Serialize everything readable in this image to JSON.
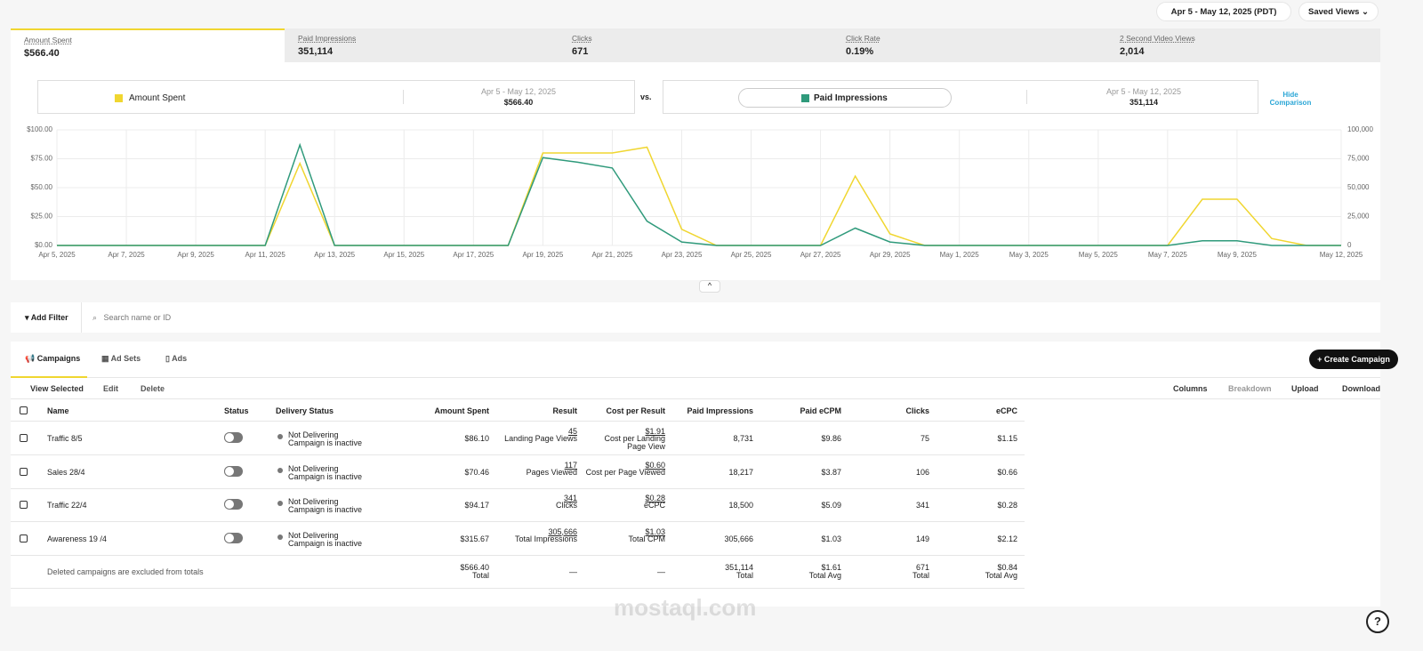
{
  "header": {
    "date_range": "Apr 5 - May 12, 2025 (PDT)",
    "saved_views": "Saved Views"
  },
  "metrics": [
    {
      "label": "Amount Spent",
      "value": "$566.40"
    },
    {
      "label": "Paid Impressions",
      "value": "351,114"
    },
    {
      "label": "Clicks",
      "value": "671"
    },
    {
      "label": "Click Rate",
      "value": "0.19%"
    },
    {
      "label": "2 Second Video Views",
      "value": "2,014"
    }
  ],
  "comparison": {
    "left_range": "Apr 5 - May 12, 2025",
    "left_value": "$566.40",
    "vs": "vs.",
    "right_range": "Apr 5 - May 12, 2025",
    "right_value": "351,114",
    "hide": "Hide Comparison"
  },
  "chart_data": {
    "type": "line",
    "categories": [
      "Apr 5, 2025",
      null,
      "Apr 7, 2025",
      null,
      "Apr 9, 2025",
      null,
      "Apr 11, 2025",
      null,
      "Apr 13, 2025",
      null,
      "Apr 15, 2025",
      null,
      "Apr 17, 2025",
      null,
      "Apr 19, 2025",
      null,
      "Apr 21, 2025",
      null,
      "Apr 23, 2025",
      null,
      "Apr 25, 2025",
      null,
      "Apr 27, 2025",
      null,
      "Apr 29, 2025",
      null,
      "May 1, 2025",
      null,
      "May 3, 2025",
      null,
      "May 5, 2025",
      null,
      "May 7, 2025",
      null,
      "May 9, 2025",
      null,
      null,
      "May 12, 2025"
    ],
    "series": [
      {
        "name": "Amount Spent",
        "color": "#f0d630",
        "values": [
          0,
          0,
          0,
          0,
          0,
          0,
          0,
          71,
          0,
          0,
          0,
          0,
          0,
          0,
          80,
          80,
          80,
          85,
          14,
          0,
          0,
          0,
          0,
          60,
          10,
          0,
          0,
          0,
          0,
          0,
          0,
          0,
          0,
          40,
          40,
          6,
          0,
          0
        ]
      },
      {
        "name": "Paid Impressions",
        "color": "#2f9a7b",
        "axis": "y2",
        "values": [
          0,
          0,
          0,
          0,
          0,
          0,
          0,
          87000,
          0,
          0,
          0,
          0,
          0,
          0,
          76000,
          72000,
          67000,
          21000,
          3000,
          0,
          0,
          0,
          0,
          15000,
          3000,
          0,
          0,
          0,
          0,
          0,
          0,
          0,
          0,
          4000,
          4000,
          0,
          0,
          0
        ]
      }
    ],
    "ylim": [
      0,
      100
    ],
    "yticks": [
      {
        "value": 0,
        "label": "$0.00"
      },
      {
        "value": 25,
        "label": "$25.00"
      },
      {
        "value": 50,
        "label": "$50.00"
      },
      {
        "value": 75,
        "label": "$75.00"
      },
      {
        "value": 100,
        "label": "$100.00"
      }
    ],
    "y2lim": [
      0,
      100000
    ],
    "y2ticks": [
      0,
      {
        "value": 25000,
        "label": "25,000"
      },
      {
        "value": 50000,
        "label": "50,000"
      },
      {
        "value": 75000,
        "label": "75,000"
      },
      {
        "value": 100000,
        "label": "100,000"
      }
    ],
    "grid": true
  },
  "filter": {
    "add": "Add Filter",
    "search": "Search name or ID"
  },
  "tabs": [
    "Campaigns",
    "Ad Sets",
    "Ads"
  ],
  "create": "Create Campaign",
  "toolbar_left": [
    "View Selected",
    "Edit",
    "Delete"
  ],
  "toolbar_right": [
    "Columns",
    "Breakdown",
    "Upload",
    "Download"
  ],
  "table": {
    "columns": [
      "Name",
      "Status",
      "Delivery Status",
      "Amount Spent",
      "Result",
      "Cost per Result",
      "Paid Impressions",
      "Paid eCPM",
      "Clicks",
      "eCPC"
    ],
    "rows": [
      {
        "name": "Traffic 8/5",
        "delivery": "Not Delivering",
        "delivery_detail": "Campaign is inactive",
        "amount_spent": "$86.10",
        "result": "45",
        "result_type": "Landing Page Views",
        "cost_per_result": "$1.91",
        "cost_type": "Cost per Landing Page View",
        "paid_impressions": "8,731",
        "paid_ecpm": "$9.86",
        "clicks": "75",
        "ecpc": "$1.15"
      },
      {
        "name": "Sales 28/4",
        "delivery": "Not Delivering",
        "delivery_detail": "Campaign is inactive",
        "amount_spent": "$70.46",
        "result": "117",
        "result_type": "Pages Viewed",
        "cost_per_result": "$0.60",
        "cost_type": "Cost per Page Viewed",
        "paid_impressions": "18,217",
        "paid_ecpm": "$3.87",
        "clicks": "106",
        "ecpc": "$0.66"
      },
      {
        "name": "Traffic 22/4",
        "delivery": "Not Delivering",
        "delivery_detail": "Campaign is inactive",
        "amount_spent": "$94.17",
        "result": "341",
        "result_type": "Clicks",
        "cost_per_result": "$0.28",
        "cost_type": "eCPC",
        "paid_impressions": "18,500",
        "paid_ecpm": "$5.09",
        "clicks": "341",
        "ecpc": "$0.28"
      },
      {
        "name": "Awareness 19 /4",
        "delivery": "Not Delivering",
        "delivery_detail": "Campaign is inactive",
        "amount_spent": "$315.67",
        "result": "305,666",
        "result_type": "Total Impressions",
        "cost_per_result": "$1.03",
        "cost_type": "Total CPM",
        "paid_impressions": "305,666",
        "paid_ecpm": "$1.03",
        "clicks": "149",
        "ecpc": "$2.12"
      }
    ],
    "totals": {
      "note": "Deleted campaigns are excluded from totals",
      "amount_spent": "$566.40",
      "amount_spent_label": "Total",
      "result": "—",
      "cost_per_result": "—",
      "paid_impressions": "351,114",
      "paid_impressions_label": "Total",
      "paid_ecpm": "$1.61",
      "paid_ecpm_label": "Total Avg",
      "clicks": "671",
      "clicks_label": "Total",
      "ecpc": "$0.84",
      "ecpc_label": "Total Avg"
    }
  },
  "watermark": "mostaql.com"
}
